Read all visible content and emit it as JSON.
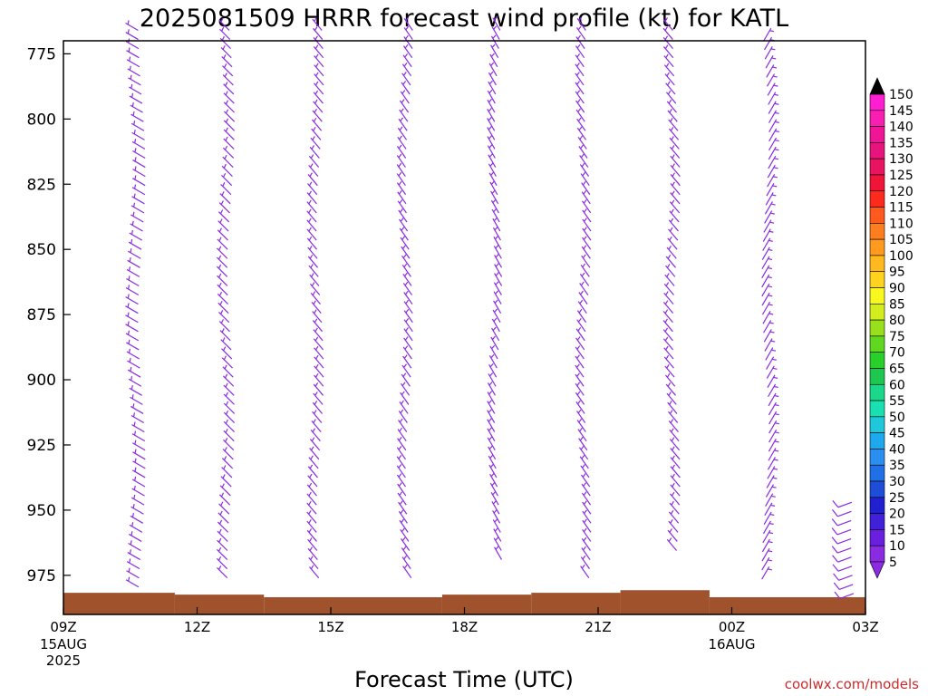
{
  "chart_data": {
    "type": "wind-barb-profile",
    "title": "2025081509 HRRR forecast wind profile (kt) for KATL",
    "xlabel": "Forecast Time (UTC)",
    "ylabel": "",
    "y_ticks": [
      775,
      800,
      825,
      850,
      875,
      900,
      925,
      950,
      975
    ],
    "ylim": [
      770,
      990
    ],
    "x_ticks": [
      {
        "hour": 0,
        "label": "09Z",
        "sub": [
          "15AUG",
          "2025"
        ]
      },
      {
        "hour": 3,
        "label": "12Z",
        "sub": []
      },
      {
        "hour": 6,
        "label": "15Z",
        "sub": []
      },
      {
        "hour": 9,
        "label": "18Z",
        "sub": []
      },
      {
        "hour": 12,
        "label": "21Z",
        "sub": []
      },
      {
        "hour": 15,
        "label": "00Z",
        "sub": [
          "16AUG"
        ]
      },
      {
        "hour": 18,
        "label": "03Z",
        "sub": []
      }
    ],
    "xlim": [
      0,
      18
    ],
    "colorbar": {
      "levels": [
        5,
        10,
        15,
        20,
        25,
        30,
        35,
        40,
        45,
        50,
        55,
        60,
        65,
        70,
        75,
        80,
        85,
        90,
        95,
        100,
        105,
        110,
        115,
        120,
        125,
        130,
        135,
        140,
        145,
        150
      ],
      "colors": [
        "#8a2be2",
        "#6a1fe0",
        "#4020d8",
        "#2020d0",
        "#1e4ed8",
        "#1f6fe6",
        "#2a8ff0",
        "#1ea8ee",
        "#1ec8d8",
        "#19e0b0",
        "#19d88a",
        "#1ec850",
        "#2ad02a",
        "#60d820",
        "#98e01e",
        "#d2ec1e",
        "#f8f81e",
        "#ffd21e",
        "#ffb81e",
        "#ff9a1e",
        "#ff7f1e",
        "#ff5a1e",
        "#ff2a1e",
        "#f01438",
        "#e81460",
        "#e8147e",
        "#f01496",
        "#f81eb0",
        "#ff1ed2",
        "#000000"
      ]
    },
    "ground": [
      {
        "x0": 0,
        "x1": 2.5,
        "p": 981.7
      },
      {
        "x0": 2.5,
        "x1": 4.5,
        "p": 982.4
      },
      {
        "x0": 4.5,
        "x1": 8.5,
        "p": 983.4
      },
      {
        "x0": 8.5,
        "x1": 10.5,
        "p": 982.4
      },
      {
        "x0": 10.5,
        "x1": 12.5,
        "p": 981.7
      },
      {
        "x0": 12.5,
        "x1": 14.5,
        "p": 980.7
      },
      {
        "x0": 14.5,
        "x1": 18,
        "p": 983.4
      }
    ],
    "ground_color": "#a0522d",
    "barb_color": "#8a2be2",
    "series": [
      {
        "hour": 2,
        "top": 766,
        "bottom": 981,
        "speed_kt": 5,
        "dir_deg": 300
      },
      {
        "hour": 4,
        "top": 766,
        "bottom": 976,
        "speed_kt": 5,
        "dir_deg": 315
      },
      {
        "hour": 6,
        "top": 766,
        "bottom": 976,
        "speed_kt": 5,
        "dir_deg": 320
      },
      {
        "hour": 8,
        "top": 766,
        "bottom": 976,
        "speed_kt": 5,
        "dir_deg": 325
      },
      {
        "hour": 10,
        "top": 766,
        "bottom": 970,
        "speed_kt": 5,
        "dir_deg": 330
      },
      {
        "hour": 12,
        "top": 766,
        "bottom": 976,
        "speed_kt": 5,
        "dir_deg": 325
      },
      {
        "hour": 14,
        "top": 766,
        "bottom": 966,
        "speed_kt": 5,
        "dir_deg": 320
      },
      {
        "hour": 16,
        "top": 770,
        "bottom": 977,
        "speed_kt": 5,
        "dir_deg": 30
      },
      {
        "hour": 18,
        "top": 947,
        "bottom": 982,
        "speed_kt": 10,
        "dir_deg": 250
      }
    ]
  },
  "credit": "coolwx.com/models"
}
